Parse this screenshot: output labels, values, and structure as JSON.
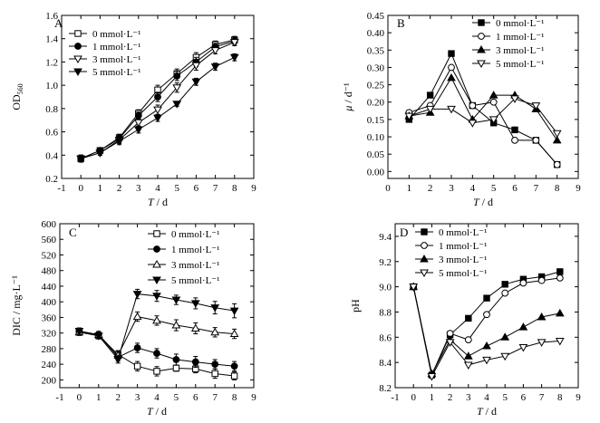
{
  "chart_data": [
    {
      "type": "line",
      "panel_label": "A",
      "xlabel_main": "T",
      "xlabel_unit": " / d",
      "ylabel_main": "OD",
      "ylabel_sub": "560",
      "xlim": [
        -1,
        9
      ],
      "ylim": [
        0.2,
        1.6
      ],
      "xticks": [
        "-1",
        "0",
        "1",
        "2",
        "3",
        "4",
        "5",
        "6",
        "7",
        "8",
        "9"
      ],
      "yticks": [
        "0.2",
        "0.4",
        "0.6",
        "0.8",
        "1.0",
        "1.2",
        "1.4",
        "1.6"
      ],
      "legend_position": "top-left",
      "x": [
        0,
        1,
        2,
        3,
        4,
        5,
        6,
        7,
        8
      ],
      "series": [
        {
          "name": "0 mmol·L⁻¹",
          "marker": "square-open",
          "values": [
            0.37,
            0.44,
            0.55,
            0.76,
            0.96,
            1.1,
            1.24,
            1.35,
            1.39
          ],
          "err": [
            0.03,
            0.02,
            0.03,
            0.03,
            0.04,
            0.04,
            0.04,
            0.03,
            0.03
          ]
        },
        {
          "name": "1 mmol·L⁻¹",
          "marker": "circle-filled",
          "values": [
            0.37,
            0.44,
            0.54,
            0.74,
            0.9,
            1.08,
            1.2,
            1.33,
            1.38
          ],
          "err": [
            0.03,
            0.02,
            0.03,
            0.03,
            0.04,
            0.04,
            0.04,
            0.03,
            0.03
          ]
        },
        {
          "name": "3 mmol·L⁻¹",
          "marker": "triangle-down-open",
          "values": [
            0.37,
            0.42,
            0.53,
            0.68,
            0.79,
            0.98,
            1.17,
            1.3,
            1.37
          ],
          "err": [
            0.03,
            0.02,
            0.03,
            0.03,
            0.04,
            0.04,
            0.04,
            0.03,
            0.03
          ]
        },
        {
          "name": "5 mmol·L⁻¹",
          "marker": "triangle-down-filled",
          "values": [
            0.37,
            0.42,
            0.52,
            0.62,
            0.72,
            0.84,
            1.03,
            1.16,
            1.24
          ],
          "err": [
            0.03,
            0.02,
            0.03,
            0.03,
            0.03,
            0.02,
            0.03,
            0.03,
            0.03
          ]
        }
      ]
    },
    {
      "type": "line",
      "panel_label": "B",
      "xlabel_main": "T",
      "xlabel_unit": " / d",
      "ylabel_main": "μ",
      "ylabel_unit": " / d⁻¹",
      "xlim": [
        0,
        9
      ],
      "ylim": [
        -0.02,
        0.45
      ],
      "xticks": [
        "0",
        "1",
        "2",
        "3",
        "4",
        "5",
        "6",
        "7",
        "8",
        "9"
      ],
      "yticks": [
        "0.00",
        "0.05",
        "0.10",
        "0.15",
        "0.20",
        "0.25",
        "0.30",
        "0.35",
        "0.40",
        "0.45"
      ],
      "legend_position": "top-right",
      "x": [
        1,
        2,
        3,
        4,
        5,
        6,
        7,
        8
      ],
      "series": [
        {
          "name": "0 mmol·L⁻¹",
          "marker": "square-filled",
          "values": [
            0.15,
            0.22,
            0.34,
            0.19,
            0.14,
            0.12,
            0.09,
            0.02
          ]
        },
        {
          "name": "1 mmol·L⁻¹",
          "marker": "circle-open",
          "values": [
            0.17,
            0.19,
            0.3,
            0.19,
            0.2,
            0.09,
            0.09,
            0.02
          ]
        },
        {
          "name": "3 mmol·L⁻¹",
          "marker": "triangle-up-filled",
          "values": [
            0.16,
            0.17,
            0.27,
            0.15,
            0.22,
            0.22,
            0.18,
            0.09
          ]
        },
        {
          "name": "5 mmol·L⁻¹",
          "marker": "triangle-down-open",
          "values": [
            0.16,
            0.18,
            0.18,
            0.14,
            0.15,
            0.21,
            0.19,
            0.11
          ]
        }
      ]
    },
    {
      "type": "line",
      "panel_label": "C",
      "xlabel_main": "T",
      "xlabel_unit": " / d",
      "ylabel_main": "DIC / mg·L⁻¹",
      "xlim": [
        -1,
        9
      ],
      "ylim": [
        180,
        600
      ],
      "xticks": [
        "-1",
        "0",
        "1",
        "2",
        "3",
        "4",
        "5",
        "6",
        "7",
        "8",
        "9"
      ],
      "yticks": [
        "200",
        "240",
        "280",
        "320",
        "360",
        "400",
        "440",
        "480",
        "520",
        "560",
        "600"
      ],
      "legend_position": "top-right",
      "x": [
        0,
        1,
        2,
        3,
        4,
        5,
        6,
        7,
        8
      ],
      "series": [
        {
          "name": "0 mmol·L⁻¹",
          "marker": "square-open",
          "values": [
            322,
            313,
            265,
            235,
            222,
            230,
            228,
            216,
            210
          ],
          "err": [
            8,
            8,
            10,
            12,
            12,
            8,
            10,
            12,
            10
          ]
        },
        {
          "name": "1 mmol·L⁻¹",
          "marker": "circle-filled",
          "values": [
            325,
            316,
            258,
            282,
            268,
            252,
            246,
            240,
            235
          ],
          "err": [
            8,
            8,
            10,
            12,
            12,
            14,
            14,
            12,
            12
          ]
        },
        {
          "name": "3 mmol·L⁻¹",
          "marker": "triangle-up-open",
          "values": [
            322,
            316,
            263,
            362,
            352,
            340,
            332,
            322,
            318
          ],
          "err": [
            8,
            8,
            10,
            12,
            12,
            14,
            14,
            12,
            12
          ]
        },
        {
          "name": "5 mmol·L⁻¹",
          "marker": "triangle-down-filled",
          "values": [
            325,
            313,
            253,
            420,
            415,
            405,
            396,
            385,
            377
          ],
          "err": [
            8,
            8,
            10,
            12,
            14,
            12,
            14,
            16,
            18
          ]
        }
      ]
    },
    {
      "type": "line",
      "panel_label": "D",
      "xlabel_main": "T",
      "xlabel_unit": " / d",
      "ylabel_main": "pH",
      "xlim": [
        -1,
        9
      ],
      "ylim": [
        8.2,
        9.5
      ],
      "xticks": [
        "-1",
        "0",
        "1",
        "2",
        "3",
        "4",
        "5",
        "6",
        "7",
        "8",
        "9"
      ],
      "yticks": [
        "8.2",
        "8.4",
        "8.6",
        "8.8",
        "9.0",
        "9.2",
        "9.4"
      ],
      "legend_position": "top-right",
      "x": [
        0,
        1,
        2,
        3,
        4,
        5,
        6,
        7,
        8
      ],
      "series": [
        {
          "name": "0 mmol·L⁻¹",
          "marker": "square-filled",
          "values": [
            9.0,
            8.3,
            8.62,
            8.75,
            8.91,
            9.02,
            9.06,
            9.08,
            9.12
          ]
        },
        {
          "name": "1 mmol·L⁻¹",
          "marker": "circle-open",
          "values": [
            9.0,
            8.3,
            8.63,
            8.58,
            8.78,
            8.95,
            9.03,
            9.05,
            9.07
          ]
        },
        {
          "name": "3 mmol·L⁻¹",
          "marker": "triangle-up-filled",
          "values": [
            9.0,
            8.31,
            8.58,
            8.45,
            8.53,
            8.6,
            8.68,
            8.76,
            8.79
          ]
        },
        {
          "name": "5 mmol·L⁻¹",
          "marker": "triangle-down-open",
          "values": [
            9.0,
            8.29,
            8.56,
            8.38,
            8.42,
            8.45,
            8.52,
            8.56,
            8.57
          ]
        }
      ]
    }
  ]
}
